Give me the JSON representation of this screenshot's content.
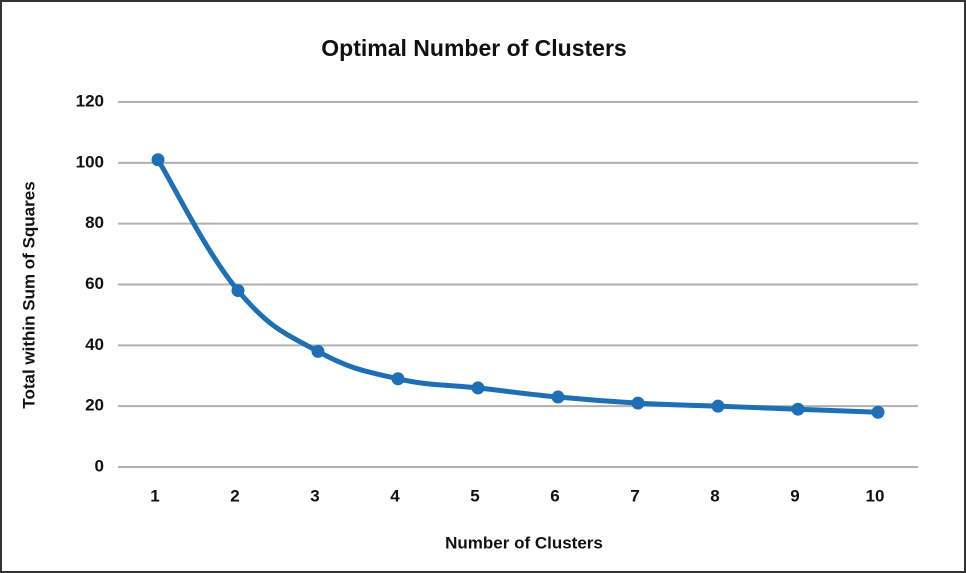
{
  "chart_data": {
    "type": "line",
    "title": "Optimal Number of Clusters",
    "x_label": "Number of Clusters",
    "y_label": "Total within Sum of Squares",
    "categories": [
      "1",
      "2",
      "3",
      "4",
      "5",
      "6",
      "7",
      "8",
      "9",
      "10"
    ],
    "values": [
      101,
      58,
      38,
      29,
      26,
      23,
      21,
      20,
      19,
      18
    ],
    "color": "#1f6fb5",
    "ylim": [
      0,
      120
    ],
    "yticks": [
      0,
      20,
      40,
      60,
      80,
      100,
      120
    ],
    "grid": true
  }
}
